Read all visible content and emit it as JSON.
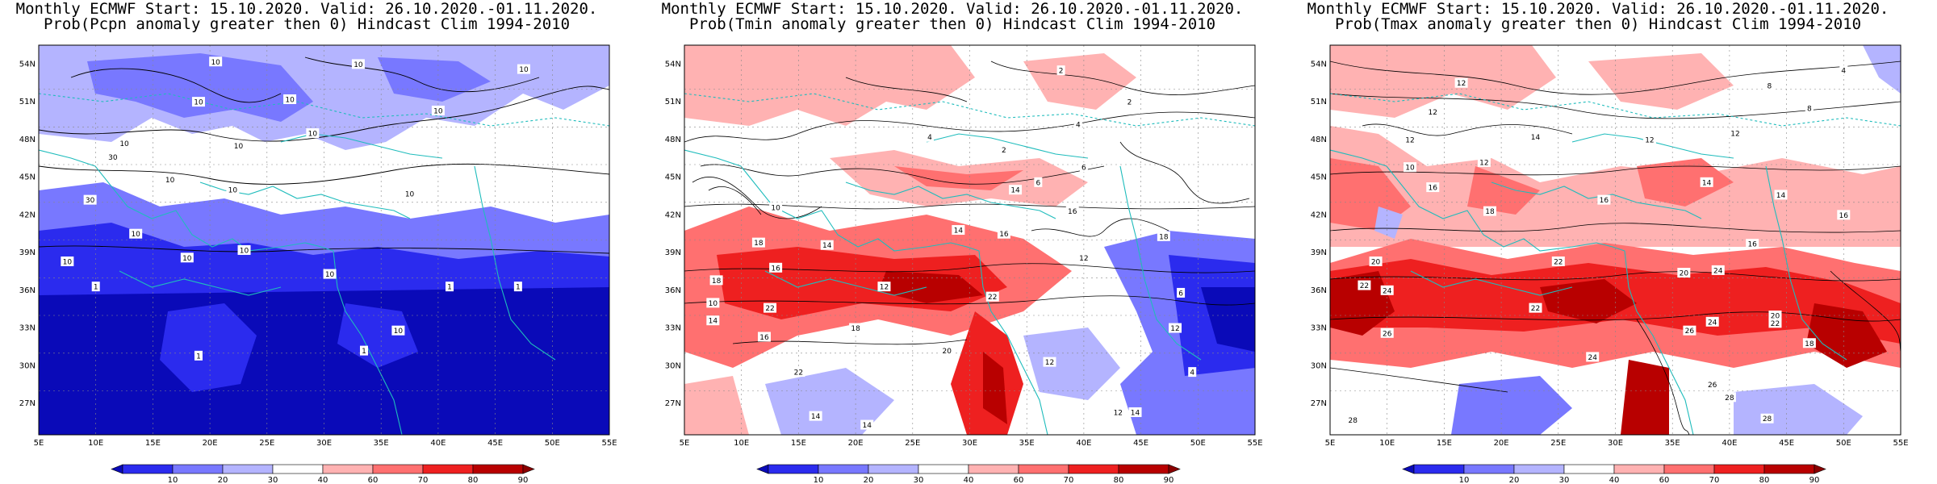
{
  "panels": [
    {
      "id": "pcpn",
      "title1": "Monthly ECMWF Start: 15.10.2020. Valid: 26.10.2020.-01.11.2020.",
      "title2": "Prob(Pcpn anomaly greater then 0) Hindcast Clim 1994-2010",
      "contour_labels": [
        {
          "text": "10",
          "lon": 20.5,
          "lat": 54.2
        },
        {
          "text": "10",
          "lon": 33,
          "lat": 54
        },
        {
          "text": "10",
          "lon": 40,
          "lat": 50.3
        },
        {
          "text": "10",
          "lon": 47.5,
          "lat": 53.6
        },
        {
          "text": "10",
          "lon": 19,
          "lat": 51
        },
        {
          "text": "10",
          "lon": 27,
          "lat": 51.2
        },
        {
          "text": "10",
          "lon": 29,
          "lat": 48.5
        },
        {
          "text": "10",
          "lon": 12.5,
          "lat": 47.7
        },
        {
          "text": "10",
          "lon": 22.5,
          "lat": 47.5
        },
        {
          "text": "30",
          "lon": 11.5,
          "lat": 46.6
        },
        {
          "text": "10",
          "lon": 16.5,
          "lat": 44.8
        },
        {
          "text": "10",
          "lon": 22,
          "lat": 44
        },
        {
          "text": "10",
          "lon": 37.5,
          "lat": 43.7
        },
        {
          "text": "30",
          "lon": 9.5,
          "lat": 43.2
        },
        {
          "text": "10",
          "lon": 13.5,
          "lat": 40.5
        },
        {
          "text": "10",
          "lon": 7.5,
          "lat": 38.3
        },
        {
          "text": "10",
          "lon": 18,
          "lat": 38.6
        },
        {
          "text": "10",
          "lon": 23,
          "lat": 39.2
        },
        {
          "text": "10",
          "lon": 30.5,
          "lat": 37.3
        },
        {
          "text": "1",
          "lon": 10,
          "lat": 36.3
        },
        {
          "text": "1",
          "lon": 41,
          "lat": 36.3
        },
        {
          "text": "1",
          "lon": 47,
          "lat": 36.3
        },
        {
          "text": "10",
          "lon": 36.5,
          "lat": 32.8
        },
        {
          "text": "1",
          "lon": 19,
          "lat": 30.8
        },
        {
          "text": "1",
          "lon": 33.5,
          "lat": 31.2
        }
      ]
    },
    {
      "id": "tmin",
      "title1": "Monthly ECMWF Start: 15.10.2020. Valid: 26.10.2020.-01.11.2020.",
      "title2": "Prob(Tmin anomaly greater then 0) Hindcast Clim 1994-2010",
      "contour_labels": [
        {
          "text": "2",
          "lon": 38,
          "lat": 53.5
        },
        {
          "text": "2",
          "lon": 44,
          "lat": 51
        },
        {
          "text": "4",
          "lon": 39.5,
          "lat": 49.2
        },
        {
          "text": "2",
          "lon": 33,
          "lat": 47.2
        },
        {
          "text": "4",
          "lon": 26.5,
          "lat": 48.2
        },
        {
          "text": "6",
          "lon": 40,
          "lat": 45.8
        },
        {
          "text": "6",
          "lon": 36,
          "lat": 44.6
        },
        {
          "text": "14",
          "lon": 34,
          "lat": 44
        },
        {
          "text": "10",
          "lon": 13,
          "lat": 42.6
        },
        {
          "text": "16",
          "lon": 39,
          "lat": 42.3
        },
        {
          "text": "14",
          "lon": 29,
          "lat": 40.8
        },
        {
          "text": "16",
          "lon": 33,
          "lat": 40.5
        },
        {
          "text": "18",
          "lon": 11.5,
          "lat": 39.8
        },
        {
          "text": "14",
          "lon": 17.5,
          "lat": 39.6
        },
        {
          "text": "12",
          "lon": 40,
          "lat": 38.6
        },
        {
          "text": "18",
          "lon": 47,
          "lat": 40.3
        },
        {
          "text": "16",
          "lon": 13,
          "lat": 37.8
        },
        {
          "text": "18",
          "lon": 7.8,
          "lat": 36.8
        },
        {
          "text": "12",
          "lon": 22.5,
          "lat": 36.3
        },
        {
          "text": "22",
          "lon": 32,
          "lat": 35.5
        },
        {
          "text": "10",
          "lon": 7.5,
          "lat": 35
        },
        {
          "text": "22",
          "lon": 12.5,
          "lat": 34.6
        },
        {
          "text": "14",
          "lon": 7.5,
          "lat": 33.6
        },
        {
          "text": "16",
          "lon": 12,
          "lat": 32.3
        },
        {
          "text": "18",
          "lon": 20,
          "lat": 33
        },
        {
          "text": "20",
          "lon": 28,
          "lat": 31.2
        },
        {
          "text": "22",
          "lon": 15,
          "lat": 29.5
        },
        {
          "text": "12",
          "lon": 37,
          "lat": 30.3
        },
        {
          "text": "14",
          "lon": 16.5,
          "lat": 26
        },
        {
          "text": "14",
          "lon": 44.5,
          "lat": 26.3
        },
        {
          "text": "12",
          "lon": 43,
          "lat": 26.3
        },
        {
          "text": "14",
          "lon": 21,
          "lat": 25.3
        },
        {
          "text": "4",
          "lon": 49.5,
          "lat": 29.5
        },
        {
          "text": "12",
          "lon": 48,
          "lat": 33
        },
        {
          "text": "6",
          "lon": 48.5,
          "lat": 35.8
        }
      ]
    },
    {
      "id": "tmax",
      "title1": "Monthly ECMWF Start: 15.10.2020. Valid: 26.10.2020.-01.11.2020.",
      "title2": "Prob(Tmax anomaly greater then 0) Hindcast Clim 1994-2010",
      "contour_labels": [
        {
          "text": "4",
          "lon": 50,
          "lat": 53.5
        },
        {
          "text": "8",
          "lon": 43.5,
          "lat": 52.3
        },
        {
          "text": "12",
          "lon": 16.5,
          "lat": 52.5
        },
        {
          "text": "8",
          "lon": 47,
          "lat": 50.5
        },
        {
          "text": "12",
          "lon": 14,
          "lat": 50.2
        },
        {
          "text": "12",
          "lon": 40.5,
          "lat": 48.5
        },
        {
          "text": "12",
          "lon": 12,
          "lat": 48
        },
        {
          "text": "14",
          "lon": 23,
          "lat": 48.2
        },
        {
          "text": "12",
          "lon": 33,
          "lat": 48
        },
        {
          "text": "12",
          "lon": 18.5,
          "lat": 46.2
        },
        {
          "text": "10",
          "lon": 12,
          "lat": 45.8
        },
        {
          "text": "14",
          "lon": 38,
          "lat": 44.6
        },
        {
          "text": "16",
          "lon": 14,
          "lat": 44.2
        },
        {
          "text": "16",
          "lon": 29,
          "lat": 43.2
        },
        {
          "text": "14",
          "lon": 44.5,
          "lat": 43.6
        },
        {
          "text": "16",
          "lon": 50,
          "lat": 42
        },
        {
          "text": "18",
          "lon": 19,
          "lat": 42.3
        },
        {
          "text": "16",
          "lon": 42,
          "lat": 39.7
        },
        {
          "text": "20",
          "lon": 9,
          "lat": 38.3
        },
        {
          "text": "22",
          "lon": 25,
          "lat": 38.3
        },
        {
          "text": "20",
          "lon": 36,
          "lat": 37.4
        },
        {
          "text": "24",
          "lon": 39,
          "lat": 37.6
        },
        {
          "text": "22",
          "lon": 8,
          "lat": 36.4
        },
        {
          "text": "24",
          "lon": 10,
          "lat": 36
        },
        {
          "text": "22",
          "lon": 23,
          "lat": 34.6
        },
        {
          "text": "26",
          "lon": 10,
          "lat": 32.6
        },
        {
          "text": "24",
          "lon": 38.5,
          "lat": 33.5
        },
        {
          "text": "26",
          "lon": 36.5,
          "lat": 32.8
        },
        {
          "text": "20",
          "lon": 44,
          "lat": 34
        },
        {
          "text": "22",
          "lon": 44,
          "lat": 33.4
        },
        {
          "text": "24",
          "lon": 28,
          "lat": 30.7
        },
        {
          "text": "26",
          "lon": 38.5,
          "lat": 28.5
        },
        {
          "text": "28",
          "lon": 40,
          "lat": 27.5
        },
        {
          "text": "28",
          "lon": 43.3,
          "lat": 25.8
        },
        {
          "text": "28",
          "lon": 7,
          "lat": 25.7
        },
        {
          "text": "18",
          "lon": 47,
          "lat": 31.8
        }
      ]
    }
  ],
  "axes": {
    "lon_ticks": [
      "5E",
      "10E",
      "15E",
      "20E",
      "25E",
      "30E",
      "35E",
      "40E",
      "45E",
      "50E",
      "55E"
    ],
    "lat_ticks": [
      "54N",
      "51N",
      "48N",
      "45N",
      "42N",
      "39N",
      "36N",
      "33N",
      "30N",
      "27N"
    ],
    "lon_range": [
      5,
      55
    ],
    "lat_range": [
      24.5,
      55.5
    ]
  },
  "colorbar": {
    "labels": [
      "10",
      "20",
      "30",
      "40",
      "60",
      "70",
      "80",
      "90"
    ],
    "colors": [
      "#0a0ab8",
      "#2b2bee",
      "#7878ff",
      "#b4b4ff",
      "#ffffff",
      "#ffb2b2",
      "#ff7070",
      "#ee2020",
      "#b80000",
      "#8a0000"
    ]
  },
  "colors": {
    "coast": "#1fbcbc",
    "contour": "#000000"
  }
}
